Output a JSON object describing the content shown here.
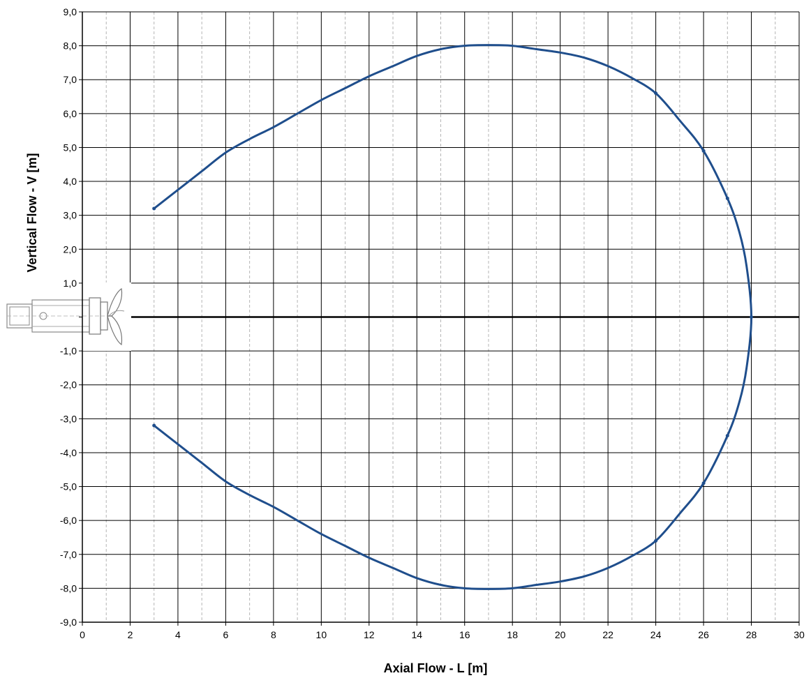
{
  "chart_data": {
    "type": "line",
    "xlabel": "Axial Flow - L [m]",
    "ylabel": "Vertical Flow - V [m]",
    "xlim": [
      0,
      30
    ],
    "ylim": [
      -9,
      9
    ],
    "x_ticks": [
      0,
      2,
      4,
      6,
      8,
      10,
      12,
      14,
      16,
      18,
      20,
      22,
      24,
      26,
      28,
      30
    ],
    "y_ticks": [
      9,
      8,
      7,
      6,
      5,
      4,
      3,
      2,
      1,
      -1,
      -2,
      -3,
      -4,
      -5,
      -6,
      -7,
      -8,
      -9
    ],
    "x_tick_labels": [
      "0",
      "2",
      "4",
      "6",
      "8",
      "10",
      "12",
      "14",
      "16",
      "18",
      "20",
      "22",
      "24",
      "26",
      "28",
      "30"
    ],
    "y_tick_labels": [
      "9,0",
      "8,0",
      "7,0",
      "6,0",
      "5,0",
      "4,0",
      "3,0",
      "2,0",
      "1,0",
      "-1,0",
      "-2,0",
      "-3,0",
      "-4,0",
      "-5,0",
      "-6,0",
      "-7,0",
      "-8,0",
      "-9,0"
    ],
    "grid": {
      "major_x_step": 2,
      "minor_x_step": 1,
      "major_y_step": 1,
      "minor_x_dashed": true
    },
    "zero_line": true,
    "line_color": "#1f4e8c",
    "series": [
      {
        "x": [
          3,
          4,
          5,
          6,
          7,
          8,
          9,
          10,
          11,
          12,
          13,
          14,
          15,
          16,
          17,
          18,
          19,
          20,
          21,
          22,
          23,
          24,
          25,
          26,
          27,
          27.5,
          27.8,
          28,
          27.8,
          27.5,
          27,
          26,
          25,
          24,
          23,
          22,
          21,
          20,
          19,
          18,
          17,
          16,
          15,
          14,
          13,
          12,
          11,
          10,
          9,
          8,
          7,
          6,
          5,
          4,
          3
        ],
        "y": [
          3.2,
          3.75,
          4.3,
          4.85,
          5.25,
          5.6,
          6.0,
          6.4,
          6.75,
          7.1,
          7.4,
          7.7,
          7.9,
          8.0,
          8.02,
          8.0,
          7.9,
          7.8,
          7.65,
          7.4,
          7.05,
          6.6,
          5.8,
          4.9,
          3.5,
          2.5,
          1.5,
          0.0,
          -1.5,
          -2.5,
          -3.5,
          -4.9,
          -5.8,
          -6.6,
          -7.05,
          -7.4,
          -7.65,
          -7.8,
          -7.9,
          -8.0,
          -8.02,
          -8.0,
          -7.9,
          -7.7,
          -7.4,
          -7.1,
          -6.75,
          -6.4,
          -6.0,
          -5.6,
          -5.25,
          -4.85,
          -4.3,
          -3.75,
          -3.2
        ]
      }
    ],
    "markers": [
      {
        "x": 3,
        "y": 3.2
      },
      {
        "x": 24,
        "y": 6.6
      },
      {
        "x": 26,
        "y": 4.9
      },
      {
        "x": 27,
        "y": 3.5
      },
      {
        "x": 28,
        "y": 0.0
      },
      {
        "x": 27,
        "y": -3.5
      },
      {
        "x": 26,
        "y": -4.9
      },
      {
        "x": 24,
        "y": -6.6
      },
      {
        "x": 3,
        "y": -3.2
      }
    ]
  }
}
